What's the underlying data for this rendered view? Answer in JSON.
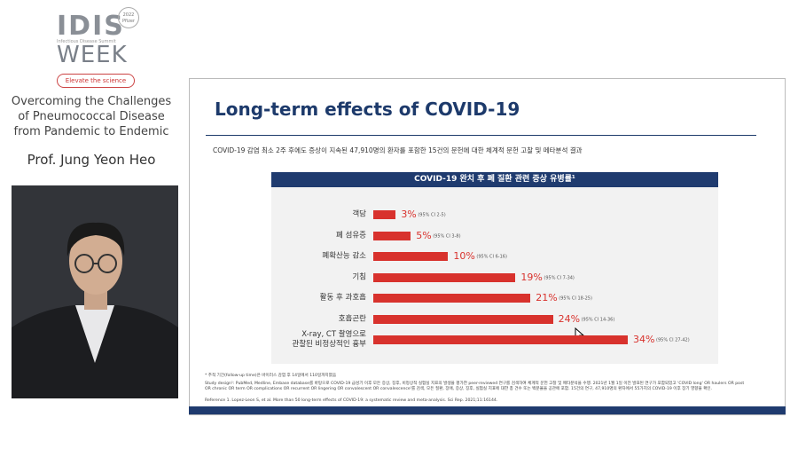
{
  "sidebar": {
    "logo": {
      "title": "IDIS",
      "badge": "2022 Pfizer",
      "tagline": "Infectious Disease Summit",
      "subtitle": "WEEK"
    },
    "slogan": "Elevate the science",
    "talk_title": "Overcoming the Challenges of Pneumococcal Disease from Pandemic to Endemic",
    "speaker": "Prof. Jung Yeon Heo"
  },
  "slide": {
    "title": "Long-term effects of COVID-19",
    "subtitle": "COVID-19 감염 최소 2주 후에도 증상이 지속된 47,910명의 환자를 포함한 15건의 문헌에 대한 체계적 문헌 고찰 및 메타분석 결과",
    "footnotes": [
      "* 추적 기간(follow-up time)은 바이러스 감염 후 14일에서 110일까지였음",
      "Study design¹: PubMed, Medline, Embase database를 바탕으로 COVID-19 급성기 이후 모든 증상, 징후, 비정상적 실험실 지표의 발생을 평가한 peer-reviewed 연구를 검색하여 체계적 문헌 고찰 및 메타분석을 수행. 2021년 1월 1일 이전 발표된 연구가 포함되었고 'COVID long' OR haulers OR post OR chronic OR term OR complications OR recurrent OR lingering OR convalescent OR convalescence'를 검색, 모든 질환, 장애, 증상, 징후, 실험실 지표에 대한 총 건수 또는 백분율을 공관에 포함. 15건의 연구, 47,910명의 환자에서 55가지의 COVID-19 이후 장기 영향을 확인.",
      "Reference 1. Lopez-Leon S, et al. More than 50 long-term effects of COVID-19: a systematic review and meta-analysis. Sci Rep. 2021;11:16144."
    ]
  },
  "chart_data": {
    "type": "bar",
    "orientation": "horizontal",
    "title": "COVID-19 완치 후 폐 질환 관련 증상 유병률¹",
    "categories": [
      "객담",
      "폐 섬유증",
      "폐확산능 감소",
      "기침",
      "활동 후 과호흡",
      "호흡곤란",
      "X-ray, CT 촬영으로\n관찰된 비정상적인 흉부"
    ],
    "values": [
      3,
      5,
      10,
      19,
      21,
      24,
      34
    ],
    "value_labels": [
      "3%",
      "5%",
      "10%",
      "19%",
      "21%",
      "24%",
      "34%"
    ],
    "ci_labels": [
      "(95% CI 2-5)",
      "(95% CI 3-8)",
      "(95% CI 6-16)",
      "(95% CI 7-34)",
      "(95% CI 18-25)",
      "(95% CI 14-36)",
      "(95% CI 27-42)"
    ],
    "color": "#d8322d"
  }
}
